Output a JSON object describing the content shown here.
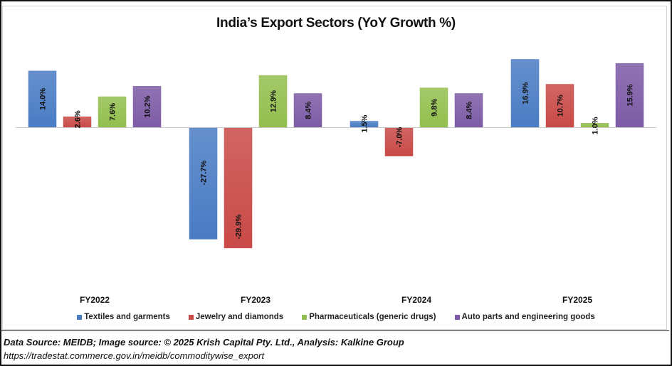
{
  "chart_data": {
    "type": "bar",
    "title": "India’s Export Sectors (YoY Growth %)",
    "xlabel": "",
    "ylabel": "",
    "categories": [
      "FY2022",
      "FY2023",
      "FY2024",
      "FY2025"
    ],
    "series": [
      {
        "name": "Textiles and garments",
        "color": "#4a7cc4",
        "values": [
          14.0,
          -27.7,
          1.5,
          16.9
        ]
      },
      {
        "name": "Jewelry and diamonds",
        "color": "#c94a47",
        "values": [
          2.6,
          -29.9,
          -7.0,
          10.7
        ]
      },
      {
        "name": "Pharmaceuticals (generic drugs)",
        "color": "#93bf4e",
        "values": [
          7.6,
          12.9,
          9.8,
          1.0
        ]
      },
      {
        "name": "Auto parts and engineering goods",
        "color": "#7d5ba6",
        "values": [
          10.2,
          8.4,
          8.4,
          15.9
        ]
      }
    ],
    "data_labels": [
      [
        "14.0%",
        "-27.7%",
        "1.5%",
        "16.9%"
      ],
      [
        "2.6%",
        "-29.9%",
        "-7.0%",
        "10.7%"
      ],
      [
        "7.6%",
        "12.9%",
        "9.8%",
        "1.0%"
      ],
      [
        "10.2%",
        "8.4%",
        "8.4%",
        "15.9%"
      ]
    ],
    "ylim": [
      -35,
      18
    ],
    "grid": false,
    "legend_position": "bottom"
  },
  "footer": {
    "source": "Data Source: MEIDB; Image source: © 2025 Krish Capital Pty. Ltd., Analysis: Kalkine Group",
    "url": "https://tradestat.commerce.gov.in/meidb/commoditywise_export"
  }
}
